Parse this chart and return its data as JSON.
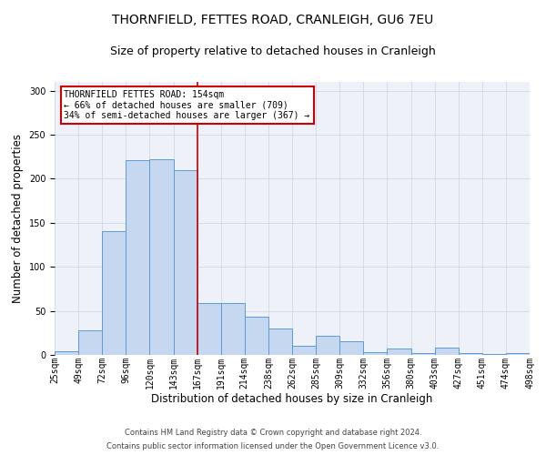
{
  "title": "THORNFIELD, FETTES ROAD, CRANLEIGH, GU6 7EU",
  "subtitle": "Size of property relative to detached houses in Cranleigh",
  "xlabel": "Distribution of detached houses by size in Cranleigh",
  "ylabel": "Number of detached properties",
  "footer_line1": "Contains HM Land Registry data © Crown copyright and database right 2024.",
  "footer_line2": "Contains public sector information licensed under the Open Government Licence v3.0.",
  "categories": [
    "25sqm",
    "49sqm",
    "72sqm",
    "96sqm",
    "120sqm",
    "143sqm",
    "167sqm",
    "191sqm",
    "214sqm",
    "238sqm",
    "262sqm",
    "285sqm",
    "309sqm",
    "332sqm",
    "356sqm",
    "380sqm",
    "403sqm",
    "427sqm",
    "451sqm",
    "474sqm",
    "498sqm"
  ],
  "values": [
    4,
    28,
    141,
    221,
    222,
    210,
    59,
    59,
    43,
    30,
    10,
    22,
    15,
    3,
    7,
    2,
    8,
    2,
    1,
    2
  ],
  "bar_color": "#c5d8f0",
  "bar_edge_color": "#5b9bd5",
  "vline_color": "#cc0000",
  "annotation_text": "THORNFIELD FETTES ROAD: 154sqm\n← 66% of detached houses are smaller (709)\n34% of semi-detached houses are larger (367) →",
  "annotation_box_color": "#ffffff",
  "annotation_box_edge_color": "#cc0000",
  "ylim": [
    0,
    310
  ],
  "yticks": [
    0,
    50,
    100,
    150,
    200,
    250,
    300
  ],
  "grid_color": "#d0d8e8",
  "background_color": "#eef2f8",
  "title_fontsize": 10,
  "subtitle_fontsize": 9,
  "xlabel_fontsize": 8.5,
  "ylabel_fontsize": 8.5,
  "annotation_fontsize": 7,
  "tick_fontsize": 7,
  "footer_fontsize": 6
}
